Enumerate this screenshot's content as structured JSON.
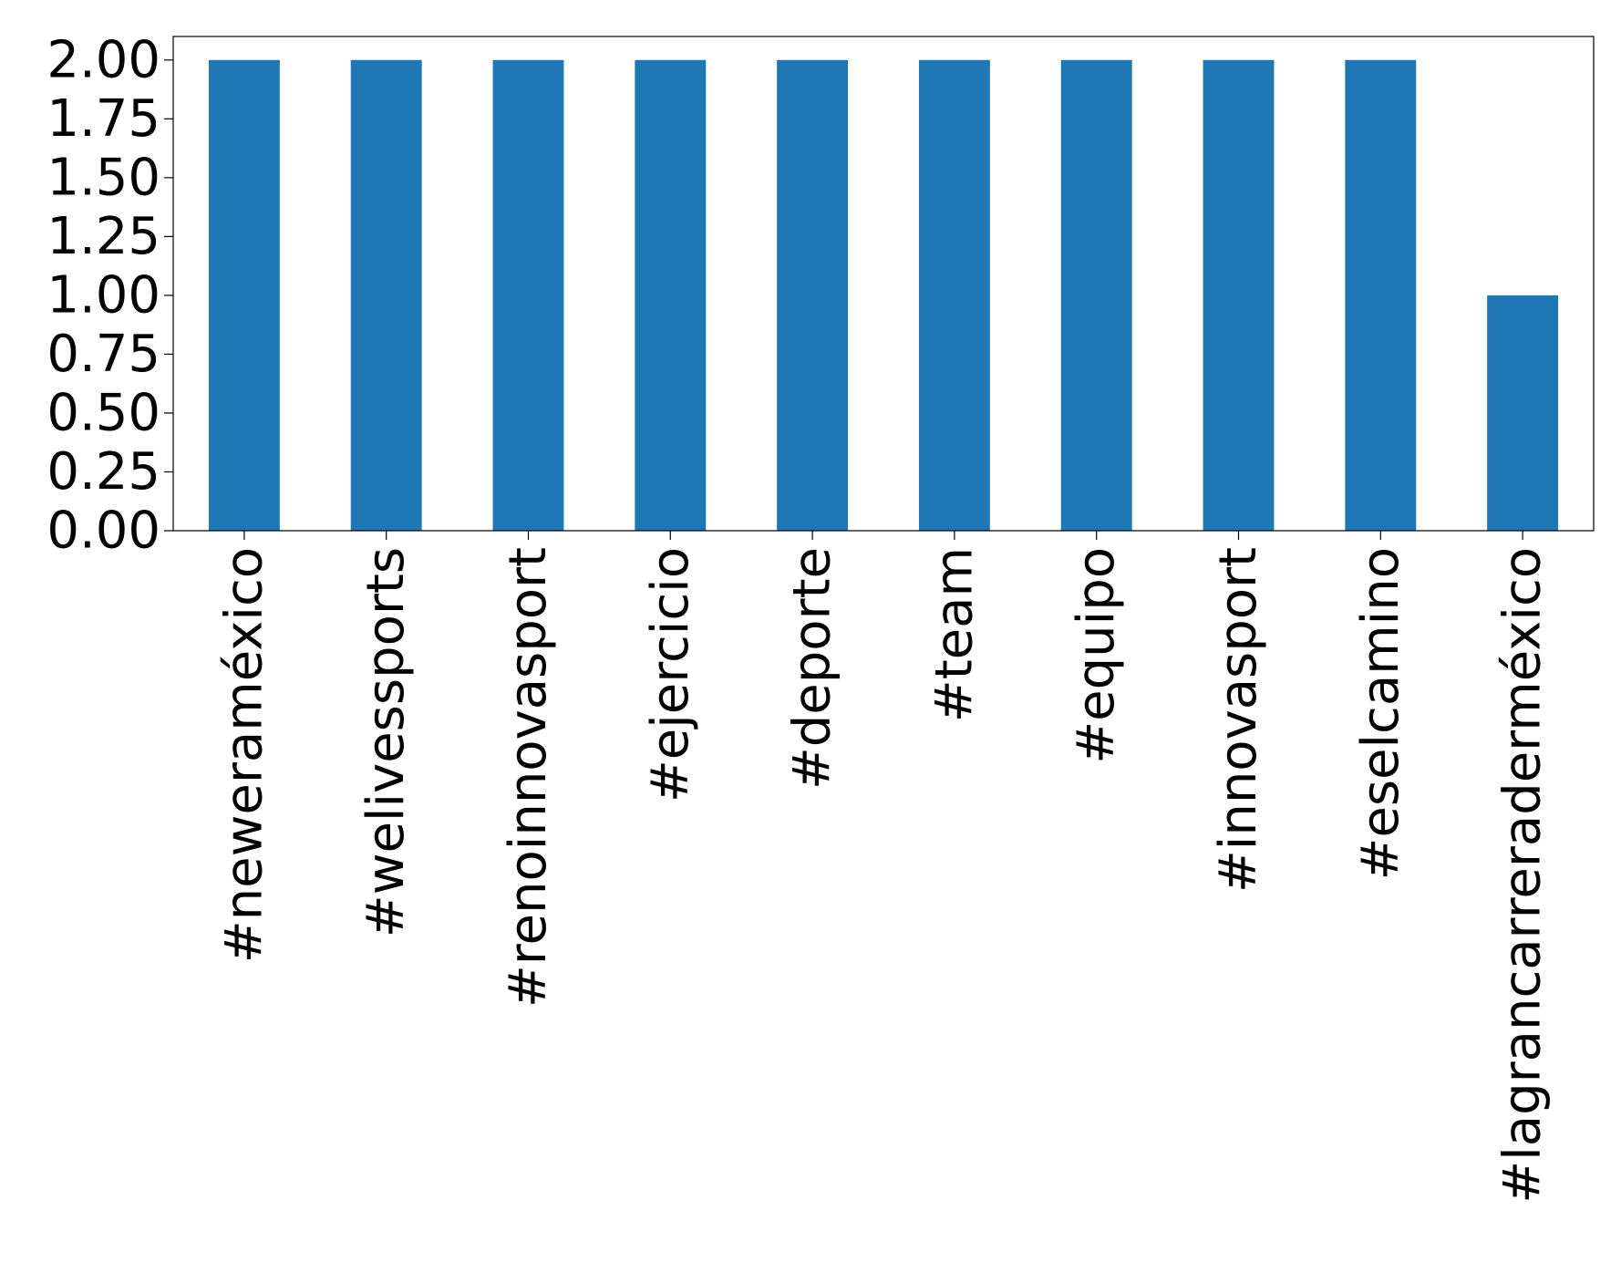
{
  "chart_data": {
    "type": "bar",
    "categories": [
      "#neweraméxico",
      "#welivessports",
      "#renoinnovasport",
      "#ejercicio",
      "#deporte",
      "#team",
      "#equipo",
      "#innovasport",
      "#eselcamino",
      "#lagrancarreraderméxico"
    ],
    "values": [
      2,
      2,
      2,
      2,
      2,
      2,
      2,
      2,
      2,
      1
    ],
    "ylim": [
      0,
      2.1
    ],
    "yticks": [
      "0.00",
      "0.25",
      "0.50",
      "0.75",
      "1.00",
      "1.25",
      "1.50",
      "1.75",
      "2.00"
    ],
    "bar_color": "#1f77b4",
    "grid": false,
    "legend": "none"
  }
}
